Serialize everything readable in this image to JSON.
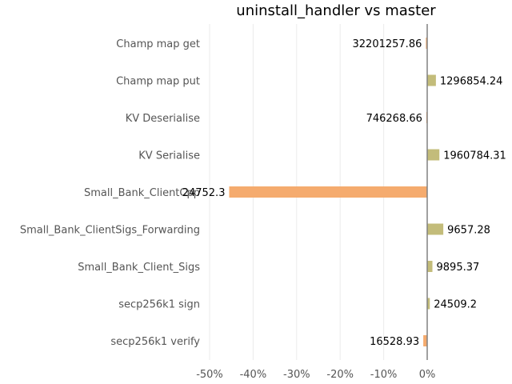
{
  "chart_data": {
    "type": "bar",
    "orientation": "horizontal",
    "title": "uninstall_handler vs master",
    "xlabel": "",
    "ylabel": "",
    "xlim": [
      -0.5,
      0.0
    ],
    "xticks": [
      -0.5,
      -0.4,
      -0.3,
      -0.2,
      -0.1,
      0.0
    ],
    "xtick_labels": [
      "-50%",
      "-40%",
      "-30%",
      "-20%",
      "-10%",
      "0%"
    ],
    "grid": true,
    "colors": {
      "positive": "#c3bc7a",
      "negative": "#f5ab6e",
      "zero_line": "#808080",
      "grid": "#ebebeb"
    },
    "categories": [
      "Champ map get",
      "Champ map put",
      "KV Deserialise",
      "KV Serialise",
      "Small_Bank_ClientCpp",
      "Small_Bank_ClientSigs_Forwarding",
      "Small_Bank_Client_Sigs",
      "secp256k1 sign",
      "secp256k1 verify"
    ],
    "values": [
      -0.003,
      0.02,
      -0.002,
      0.028,
      -0.455,
      0.037,
      0.012,
      0.006,
      -0.009
    ],
    "value_labels": [
      "32201257.86",
      "1296854.24",
      "746268.66",
      "1960784.31",
      "24752.3",
      "9657.28",
      "9895.37",
      "24509.2",
      "16528.93"
    ]
  }
}
